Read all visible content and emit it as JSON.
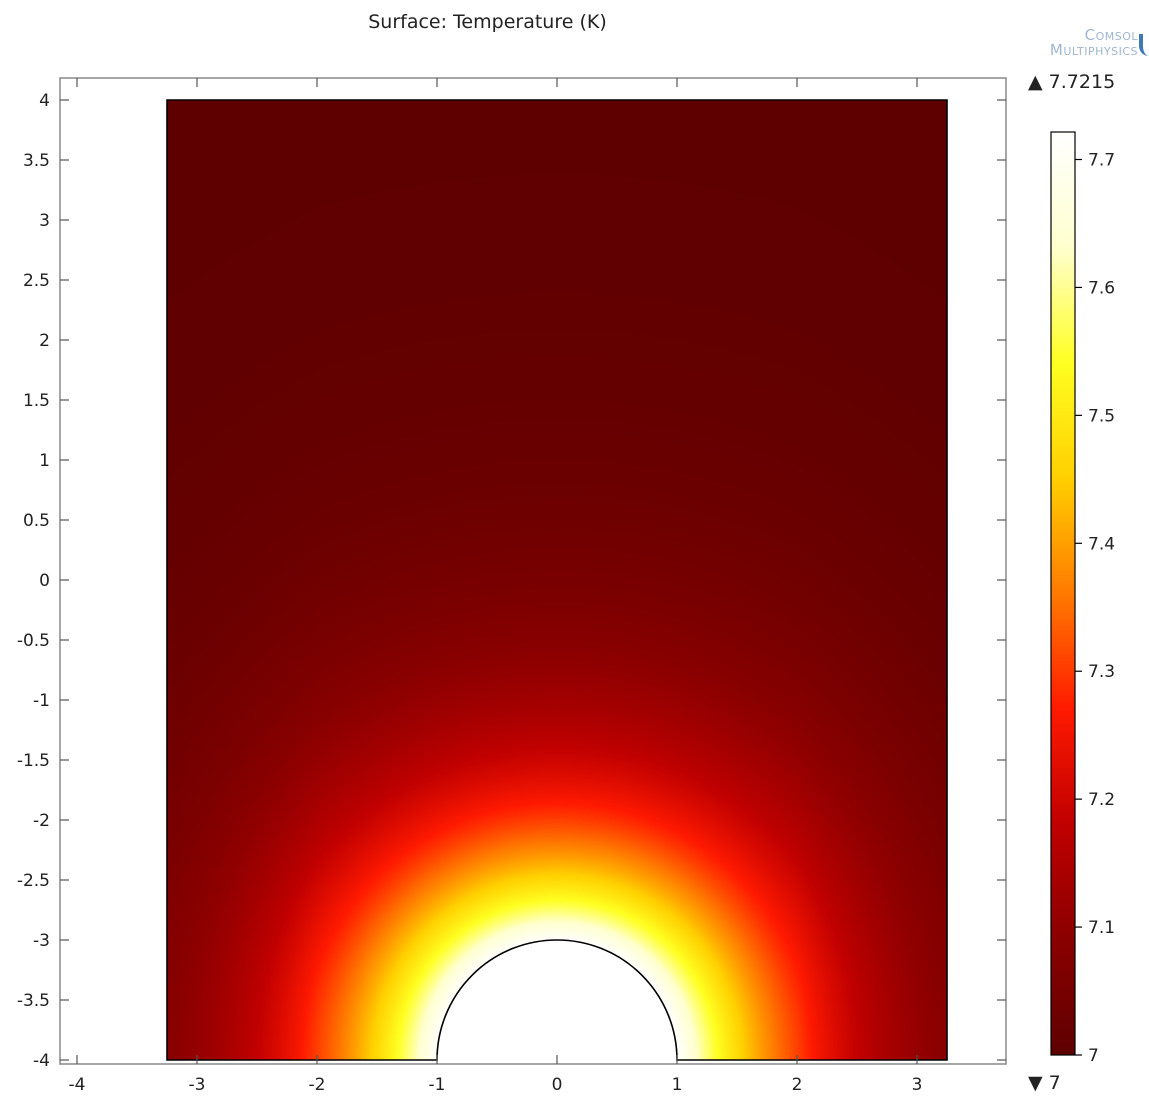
{
  "chart_data": {
    "type": "heatmap",
    "title": "Surface: Temperature (K)",
    "field": "Temperature",
    "unit": "K",
    "xlim": [
      -4,
      4
    ],
    "ylim": [
      -4,
      4
    ],
    "x_ticks": [
      -4,
      -3,
      -2,
      -1,
      0,
      1,
      2,
      3
    ],
    "y_ticks": [
      4,
      3.5,
      3,
      2.5,
      2,
      1.5,
      1,
      0.5,
      0,
      -0.5,
      -1,
      -1.5,
      -2,
      -2.5,
      -3,
      -3.5,
      -4
    ],
    "domain": {
      "x_range": [
        -3.25,
        3.25
      ],
      "y_range": [
        -4,
        4
      ],
      "hole": {
        "shape": "half-disc",
        "center": [
          0,
          -4
        ],
        "radius": 1
      }
    },
    "colormap": "heat",
    "colormap_stops": [
      "#5e0000",
      "#8a0000",
      "#c00000",
      "#ff1a00",
      "#ff7a00",
      "#ffd000",
      "#ffff22",
      "#ffffcf",
      "#ffffff"
    ],
    "color_range": {
      "min": 7,
      "max": 7.7215,
      "min_label": "7",
      "max_label": "7.7215"
    },
    "colorbar_ticks": [
      "7",
      "7.1",
      "7.2",
      "7.3",
      "7.4",
      "7.5",
      "7.6",
      "7.7"
    ],
    "grid": false
  },
  "colors": {
    "axis": "#555555",
    "frame": "#888888",
    "outline": "#000000"
  },
  "logo": {
    "line1": "Comsol",
    "line2": "Multiphysics"
  },
  "range": {
    "max_marker": "▲",
    "min_marker": "▼"
  }
}
